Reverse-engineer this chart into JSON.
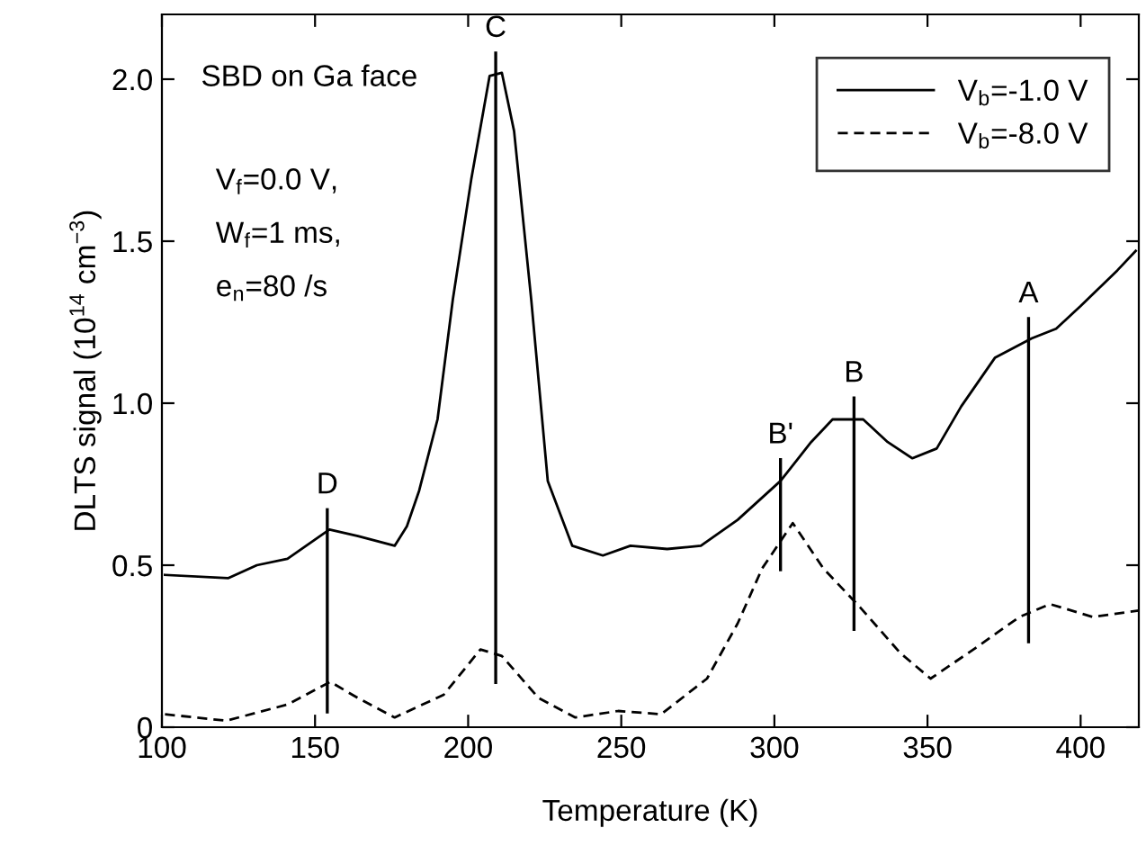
{
  "chart_data": {
    "type": "line",
    "xlabel": "Temperature (K)",
    "ylabel": "DLTS signal (10$^{14}$ cm$^{−3}$)",
    "xlim": [
      100,
      419
    ],
    "ylim": [
      0,
      2.2
    ],
    "xticks": [
      100,
      150,
      200,
      250,
      300,
      350,
      400
    ],
    "yticks": [
      0,
      0.5,
      {
        "value": 1.0,
        "label": "1.0"
      },
      {
        "value": 1.5,
        "label": "1.5"
      },
      {
        "value": 2.0,
        "label": "2.0"
      }
    ],
    "legend": "top right",
    "grid": false,
    "series": [
      {
        "name": "V$_{b}$=-1.0 V",
        "color": "#000000",
        "line_style": "solid",
        "x": [
          101,
          121.6,
          131,
          141,
          154.7,
          164,
          176,
          180,
          184,
          190,
          195,
          201,
          207,
          211,
          215,
          220.6,
          226,
          234,
          244,
          253,
          265,
          276,
          288,
          302,
          312,
          319,
          329,
          337,
          345,
          353,
          361,
          372,
          384,
          392,
          400,
          412,
          418
        ],
        "values": [
          0.47,
          0.46,
          0.5,
          0.52,
          0.61,
          0.59,
          0.56,
          0.62,
          0.73,
          0.95,
          1.32,
          1.69,
          2.01,
          2.02,
          1.84,
          1.32,
          0.76,
          0.56,
          0.53,
          0.56,
          0.55,
          0.56,
          0.64,
          0.76,
          0.88,
          0.95,
          0.95,
          0.88,
          0.83,
          0.86,
          0.99,
          1.14,
          1.2,
          1.23,
          1.3,
          1.41,
          1.47
        ]
      },
      {
        "name": "V$_{b}$=-8.0 V",
        "color": "#000000",
        "line_style": "dashed",
        "x": [
          101,
          121,
          141,
          155,
          164,
          176,
          192,
          204,
          211,
          223,
          235,
          249,
          263,
          278,
          288,
          296,
          306,
          316,
          328,
          341,
          351,
          365,
          380,
          390,
          404,
          419
        ],
        "values": [
          0.04,
          0.02,
          0.07,
          0.14,
          0.09,
          0.03,
          0.1,
          0.24,
          0.22,
          0.09,
          0.03,
          0.05,
          0.04,
          0.15,
          0.32,
          0.49,
          0.63,
          0.49,
          0.37,
          0.23,
          0.15,
          0.24,
          0.34,
          0.38,
          0.34,
          0.36
        ]
      }
    ],
    "annotations": [
      "SBD on Ga face",
      "V$_{f}$=0.0 V,",
      "W$_{f}$=1 ms,",
      "e$_{n}$=80 /s"
    ],
    "ref_lines": [
      {
        "axis": "x",
        "value": 154,
        "label": "D"
      },
      {
        "axis": "x",
        "value": 209,
        "label": "C"
      },
      {
        "axis": "x",
        "value": 302,
        "label": "B'"
      },
      {
        "axis": "x",
        "value": 326,
        "label": "B"
      },
      {
        "axis": "x",
        "value": 383,
        "label": "A"
      }
    ]
  }
}
